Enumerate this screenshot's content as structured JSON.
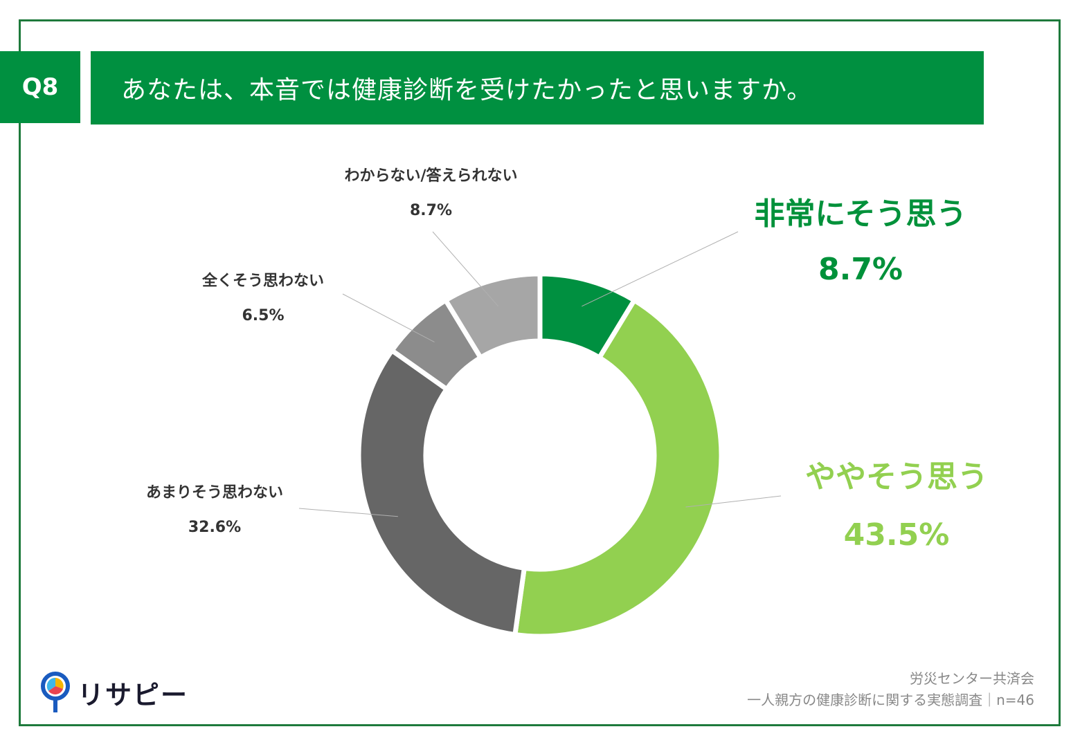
{
  "question": {
    "number": "Q8",
    "text": "あなたは、本音では健康診断を受けたかったと思いますか。"
  },
  "chart_data": {
    "type": "pie",
    "style": "donut",
    "title": "あなたは、本音では健康診断を受けたかったと思いますか。",
    "slices": [
      {
        "label": "非常にそう思う",
        "value": 8.7,
        "value_label": "8.7%",
        "color": "#009040"
      },
      {
        "label": "ややそう思う",
        "value": 43.5,
        "value_label": "43.5%",
        "color": "#92d050"
      },
      {
        "label": "あまりそう思わない",
        "value": 32.6,
        "value_label": "32.6%",
        "color": "#666666"
      },
      {
        "label": "全くそう思わない",
        "value": 6.5,
        "value_label": "6.5%",
        "color": "#8c8c8c"
      },
      {
        "label": "わからない/答えられない",
        "value": 8.7,
        "value_label": "8.7%",
        "color": "#a6a6a6"
      }
    ]
  },
  "branding": {
    "logo_text": "リサピー"
  },
  "source": {
    "line1": "労災センター共済会",
    "line2": "一人親方の健康診断に関する実態調査｜n=46"
  }
}
